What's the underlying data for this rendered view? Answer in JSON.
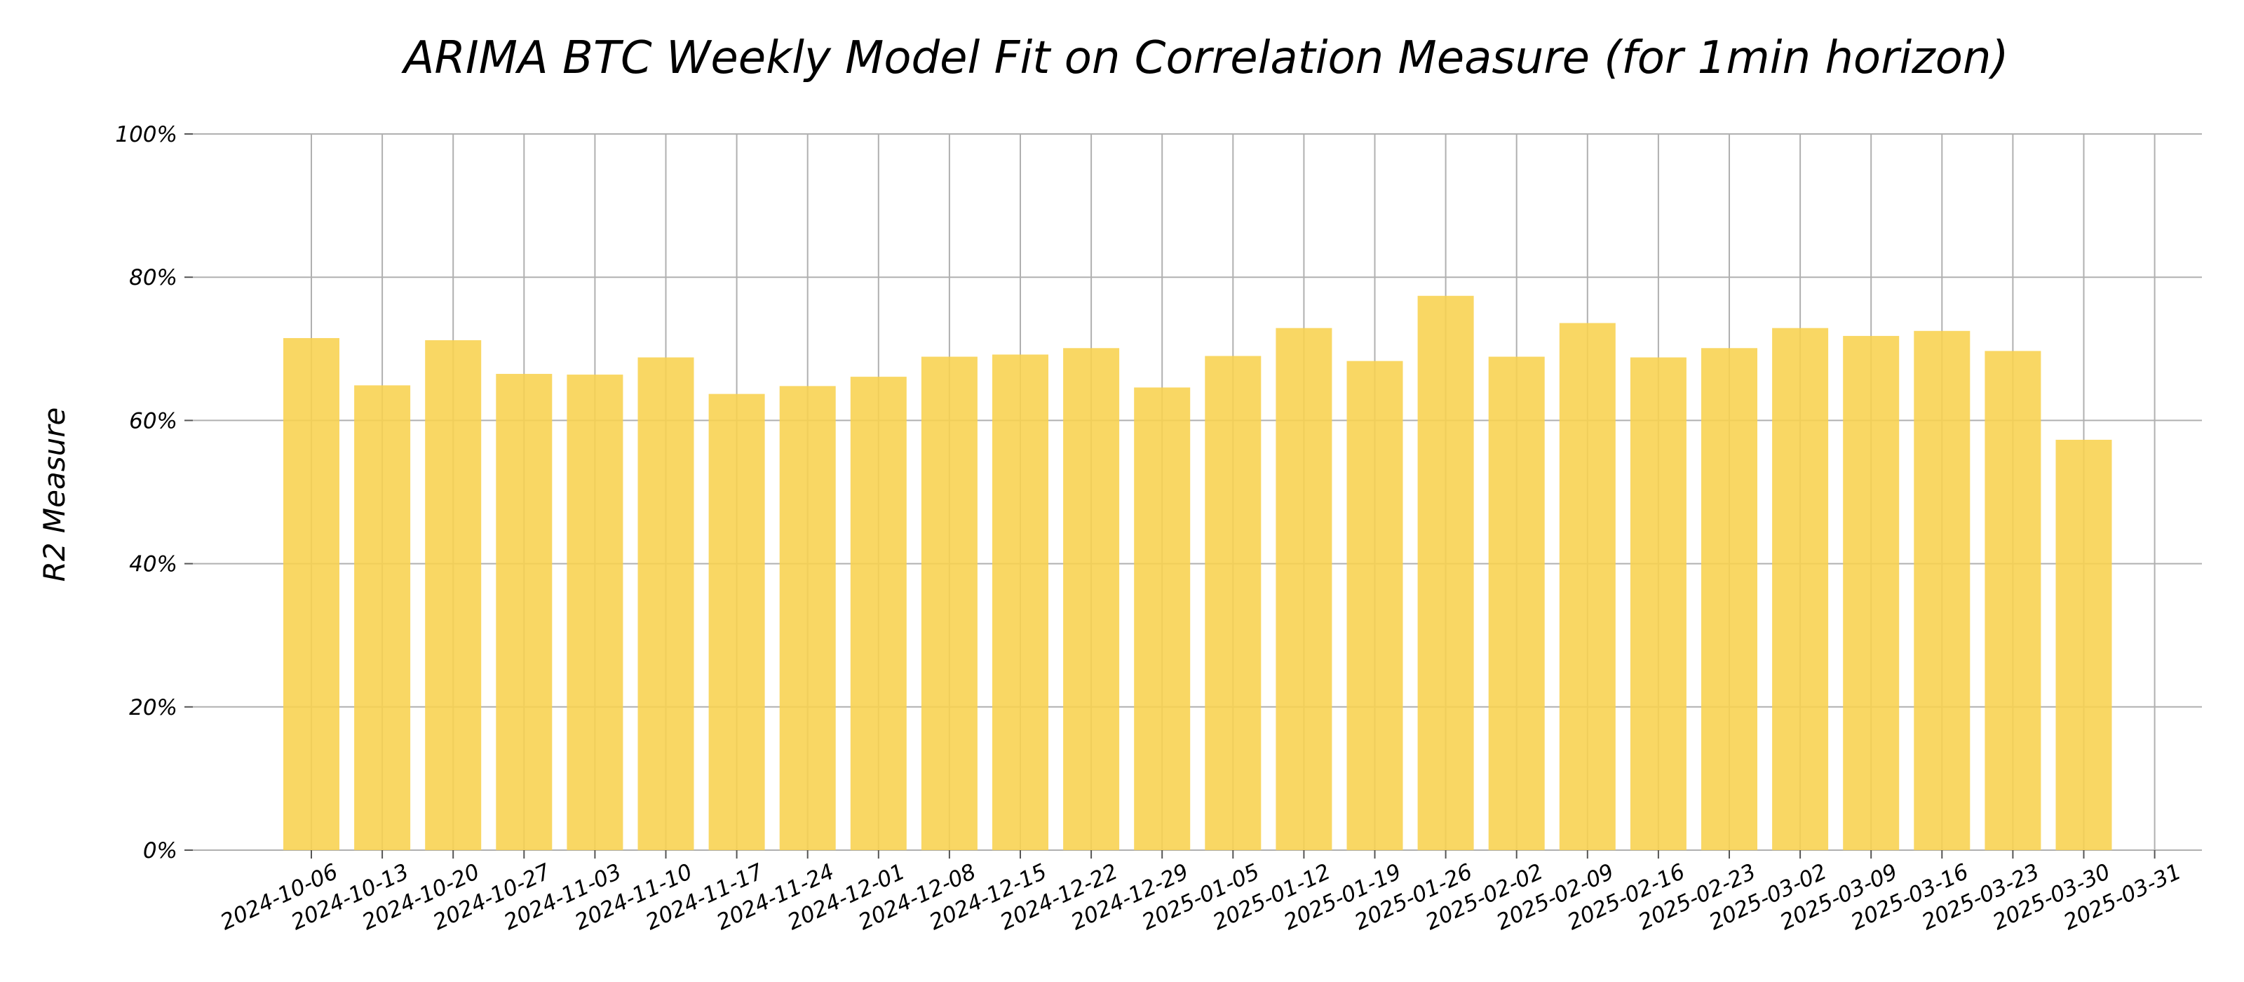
{
  "chart_data": {
    "type": "bar",
    "title": "ARIMA BTC Weekly Model Fit on Correlation Measure (for 1min horizon)",
    "xlabel": "",
    "ylabel": "R2 Measure",
    "x_tick_labels": [
      "2024-10-06",
      "2024-10-13",
      "2024-10-20",
      "2024-10-27",
      "2024-11-03",
      "2024-11-10",
      "2024-11-17",
      "2024-11-24",
      "2024-12-01",
      "2024-12-08",
      "2024-12-15",
      "2024-12-22",
      "2024-12-29",
      "2025-01-05",
      "2025-01-12",
      "2025-01-19",
      "2025-01-26",
      "2025-02-02",
      "2025-02-09",
      "2025-02-16",
      "2025-02-23",
      "2025-03-02",
      "2025-03-09",
      "2025-03-16",
      "2025-03-23",
      "2025-03-30",
      "2025-03-31"
    ],
    "categories": [
      "2024-10-06",
      "2024-10-13",
      "2024-10-20",
      "2024-10-27",
      "2024-11-03",
      "2024-11-10",
      "2024-11-17",
      "2024-11-24",
      "2024-12-01",
      "2024-12-08",
      "2024-12-15",
      "2024-12-22",
      "2024-12-29",
      "2025-01-05",
      "2025-01-12",
      "2025-01-19",
      "2025-01-26",
      "2025-02-02",
      "2025-02-09",
      "2025-02-16",
      "2025-02-23",
      "2025-03-02",
      "2025-03-09",
      "2025-03-16",
      "2025-03-23",
      "2025-03-30"
    ],
    "values": [
      71.5,
      64.9,
      71.2,
      66.5,
      66.4,
      68.8,
      63.7,
      64.8,
      66.1,
      68.9,
      69.2,
      70.1,
      64.6,
      69.0,
      72.9,
      68.3,
      77.4,
      68.9,
      73.6,
      68.8,
      70.1,
      72.9,
      71.8,
      72.5,
      69.7,
      57.3
    ],
    "y_ticks": [
      "0%",
      "20%",
      "40%",
      "60%",
      "80%",
      "100%"
    ],
    "ylim": [
      0,
      100
    ],
    "grid": true,
    "legend": "none",
    "bar_color": "#f8d24f"
  }
}
